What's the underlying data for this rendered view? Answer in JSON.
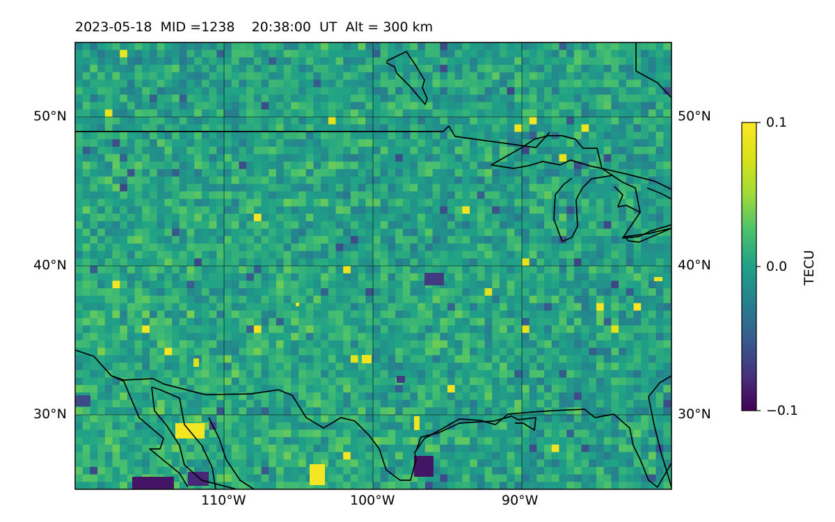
{
  "title": "2023-05-18  MID =1238    20:38:00  UT  Alt = 300 km",
  "map": {
    "extent": {
      "lon": [
        -120,
        -80
      ],
      "lat": [
        25,
        55
      ]
    },
    "lat_ticks": [
      {
        "value": 50,
        "label": "50°N"
      },
      {
        "value": 40,
        "label": "40°N"
      },
      {
        "value": 30,
        "label": "30°N"
      }
    ],
    "lon_ticks": [
      {
        "value": -110,
        "label": "110°W"
      },
      {
        "value": -100,
        "label": "100°W"
      },
      {
        "value": -90,
        "label": "90°W"
      }
    ],
    "gridlines": true,
    "coastlines": true,
    "borders": true,
    "field": "detrended TEC perturbation (pixelated grid)"
  },
  "colorbar": {
    "label": "TECU",
    "colormap": "viridis",
    "min": -0.1,
    "max": 0.1,
    "ticks": [
      {
        "value": 0.1,
        "label": "0.1"
      },
      {
        "value": 0.0,
        "label": "0.0"
      },
      {
        "value": -0.1,
        "label": "−0.1"
      }
    ]
  },
  "colors": {
    "viridis_low": "#440154",
    "viridis_mid": "#21918c",
    "viridis_high": "#fde725"
  }
}
